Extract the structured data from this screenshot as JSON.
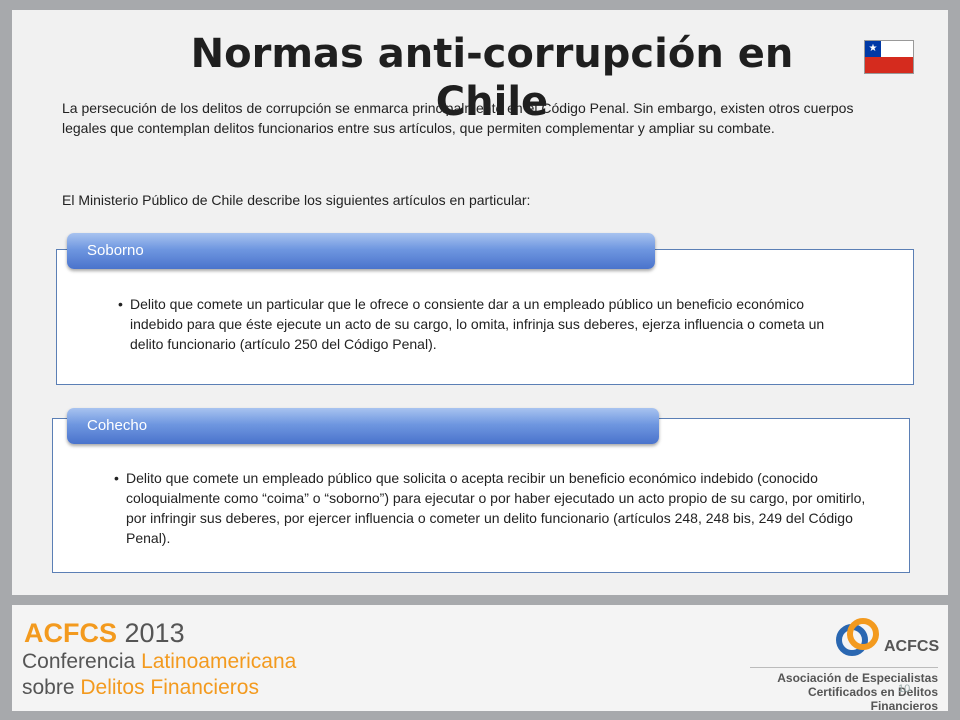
{
  "slide": {
    "title": "Normas anti-corrupción en Chile",
    "intro": "La persecución de los delitos de corrupción se enmarca principalmente en el Código Penal. Sin embargo, existen otros cuerpos legales que contemplan delitos funcionarios entre sus artículos, que permiten complementar y ampliar su combate.",
    "intro2": "El Ministerio Público de Chile describe los siguientes artículos en particular:",
    "sections": [
      {
        "label": "Soborno",
        "text": "Delito que comete un particular que le ofrece o consiente dar a un empleado público un beneficio económico indebido para que éste ejecute un acto de su cargo, lo omita, infrinja sus deberes, ejerza influencia o cometa un delito funcionario (artículo 250 del Código Penal)."
      },
      {
        "label": "Cohecho",
        "text": "Delito que comete un empleado público que solicita o acepta recibir un beneficio económico indebido (conocido coloquialmente como “coima” o “soborno”) para ejecutar o por haber ejecutado un acto propio de su cargo, por omitirlo, por infringir sus deberes, por ejercer influencia o cometer un delito funcionario (artículos 248, 248 bis, 249 del Código Penal)."
      }
    ],
    "flag_icon": "chile-flag-icon"
  },
  "footer": {
    "event_acronym": "ACFCS",
    "event_year": "2013",
    "line1_a": "Conferencia ",
    "line1_b": "Latinoamericana",
    "line2_a": "sobre ",
    "line2_b": "Delitos Financieros",
    "logo_text": "ACFCS",
    "org_line1": "Asociación de Especialistas",
    "org_line2": "Certificados en Delitos Financieros",
    "page_number": "10"
  },
  "colors": {
    "accent_orange": "#f39a1e",
    "tab_blue": "#4a73cc",
    "box_border": "#5b7fb5"
  }
}
